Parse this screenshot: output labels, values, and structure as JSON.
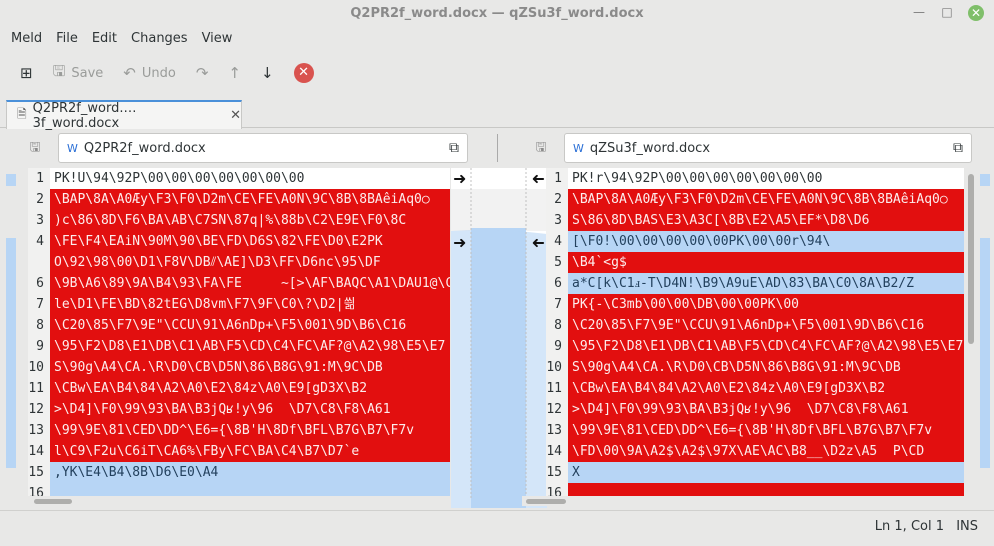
{
  "window": {
    "title": "Q2PR2f_word.docx — qZSu3f_word.docx",
    "icons": [
      "minimize-icon",
      "maximize-icon",
      "close-icon"
    ]
  },
  "menubar": {
    "items": [
      "Meld",
      "File",
      "Edit",
      "Changes",
      "View"
    ]
  },
  "toolbar": {
    "save_label": "Save",
    "undo_label": "Undo"
  },
  "tab": {
    "label": "Q2PR2f_word.…3f_word.docx"
  },
  "left_pane": {
    "filename": "Q2PR2f_word.docx",
    "rows": [
      {
        "n": "1",
        "t": "PK\u0003\u0004\u0014\u0000\u0006\u0000\b\u0000\u0000\u0000!\u0000U\\94\\92P\\00\\00\\00\\00\\00\\00\\00",
        "s": "same"
      },
      {
        "n": "2",
        "t": "\\BAP\\8A\\A0Æy\\F3\\F0\u0014\\D2m\\CE\\FE\\A0N\\9C\\8B\\8BAêiAq0○",
        "s": "chg"
      },
      {
        "n": "3",
        "t": ")c\\86\\8D\u0014\\F6\\BA\\AB\\C7SN\\87q|%\u0014\\88b\\C2\\E9E\\F0\\8C",
        "s": "chg"
      },
      {
        "n": "4",
        "t": "\\FE\\F4\u0014\\EAiN\\90M\\90\\BE\\FD\u0014\\D6S\\82\\FE\\D0\\E2\u0014PK\u0014",
        "s": "chg"
      },
      {
        "n": "",
        "t": "O\\92\\98\\00\\D1\\F8V\\DB⫽\\AE]\\D3\u0014\\FF\\D6nc\u0014\\95\u0014\\DF",
        "s": "chg"
      },
      {
        "n": "6",
        "t": "\\9B\\A6\\89\\9A\\B4\\93\\FA\\FE     ~[>\\AF\\BAQC\\A1\\DAU1@\\C",
        "s": "chg"
      },
      {
        "n": "7",
        "t": "\u0014le\u0014\\D1\\FE\\BD\\82tEG\\D8vm\\F7\u0014\\9F\\C0\\?\\D2\u0014|씖",
        "s": "chg"
      },
      {
        "n": "8",
        "t": "\\C20\u0014\\85\\F7\\9E\"\\CCU\u0014\\91\\A6nDp+\\F5\\001\\9D\\B6\\C16",
        "s": "chg"
      },
      {
        "n": "9",
        "t": "\\95\\F2\\D8\\E1\\DB\\C1\\AB\\F5\\CD\\C4\\FC\\AF?@\\A2\\98\\E5\\E7",
        "s": "chg"
      },
      {
        "n": "10",
        "t": "S\\90\u0014g\\A4\\CA.\\R\\D0\u0014\\CB\\D5N\\86\\B8G\\91:M\\9C\\DB",
        "s": "chg"
      },
      {
        "n": "11",
        "t": "\\CBw\\EA\\B4\u0014\\84\\A2\\A0\u0014\\E2\\84z\\A0\\E9\u0014[gD3X\\B2",
        "s": "chg"
      },
      {
        "n": "12",
        "t": ">\\D4]\\F0\u0014\\99\\93\\BA\\B3jQ\u0014ʁ!y\\96  \\D7\\C8\\F8\\A61",
        "s": "chg"
      },
      {
        "n": "13",
        "t": "\\99\\9E\\81\\CED\\DD^\\E6=\u0014{\\8B'H\\8Df\\BFL\\B7G\\B7\\F7v",
        "s": "chg"
      },
      {
        "n": "14",
        "t": "l\\C9\\F2u\\C6\u0014i\u0014T\\CA6%\\FBy\\FC\\BA\\C4\u0014\\B7\u0014\\D7`e",
        "s": "chg"
      },
      {
        "n": "15",
        "t": ",YK\\E4\\B4\u0014\\8B\\D6\\E0\\A4",
        "s": "ins"
      },
      {
        "n": "16",
        "t": "",
        "s": "ins"
      }
    ]
  },
  "right_pane": {
    "filename": "qZSu3f_word.docx",
    "rows": [
      {
        "n": "1",
        "t": "PK\u0003\u0004\u0014\u0000\u0006\u0000\b\u0000\u0000\u0000!\u0000r\\94\\92P\\00\\00\\00\\00\\00\\00\\00",
        "s": "same"
      },
      {
        "n": "2",
        "t": "\\BAP\\8A\\A0Æy\\F3\\F0\u0014\\D2m\\CE\\FE\\A0N\\9C\\8B\\8BAêiAq0○",
        "s": "chg"
      },
      {
        "n": "3",
        "t": "S\\86\\8D\u0014\\BAS\\E3\u0014\\A3C\u0014[\\8B\u0014\\E2\\A5\\EF*\\D8\\D6\u0014",
        "s": "chg"
      },
      {
        "n": "4",
        "t": "[\\F0!\u0014\\00\\00\\00\u0014\\00\\00PK\u0014\u0014\u0014\\00\u0014\\00r\\94\\",
        "s": "ins"
      },
      {
        "n": "5",
        "t": "\\B4\u0014`<g$",
        "s": "chg"
      },
      {
        "n": "6",
        "t": "a*C[k\u0014\\C1ⅎ-T\\D4\u0014N!\u0014\\B9\\A9uE\\AD\\83\\BA\\C0\\8A\\B2/Z",
        "s": "ins"
      },
      {
        "n": "7",
        "t": "PK\u0014\u0014{-\\C3mb\u0014\\00\\00\\DB\u0014\\00\\00PK\u0014\u0014\u0014\\00\u0014\u0014",
        "s": "chg"
      },
      {
        "n": "8",
        "t": "\\C20\u0014\\85\\F7\\9E\"\\CCU\u0014\\91\\A6nDp+\\F5\\001\\9D\\B6\\C16",
        "s": "chg"
      },
      {
        "n": "9",
        "t": "\\95\\F2\\D8\\E1\\DB\\C1\\AB\\F5\\CD\\C4\\FC\\AF?@\\A2\\98\\E5\\E7",
        "s": "chg"
      },
      {
        "n": "10",
        "t": "S\\90\u0014g\\A4\\CA.\\R\\D0\u0014\\CB\\D5N\\86\\B8G\\91:M\\9C\\DB",
        "s": "chg"
      },
      {
        "n": "11",
        "t": "\\CBw\\EA\\B4\u0014\\84\\A2\\A0\u0014\\E2\\84z\\A0\\E9\u0014[gD3X\\B2",
        "s": "chg"
      },
      {
        "n": "12",
        "t": ">\\D4]\\F0\u0014\\99\\93\\BA\\B3jQ\u0014ʁ!y\\96  \\D7\\C8\\F8\\A61",
        "s": "chg"
      },
      {
        "n": "13",
        "t": "\\99\\9E\\81\\CED\\DD^\\E6=\u0014{\\8B'H\\8Df\\BFL\\B7G\\B7\\F7v",
        "s": "chg"
      },
      {
        "n": "14",
        "t": "\u0014\\FD\\00\\9A\\A2$\\A2$\\97X\\AE\\AC\\B8__\\D2z\\A5  P\u0014\\CD",
        "s": "chg"
      },
      {
        "n": "15",
        "t": "X",
        "s": "ins"
      },
      {
        "n": "16",
        "t": "",
        "s": "chg"
      }
    ]
  },
  "status": {
    "position": "Ln 1, Col 1",
    "mode": "INS"
  },
  "colors": {
    "changed": "#e20f0f",
    "inserted": "#b7d5f5",
    "accent": "#4a90d9"
  }
}
